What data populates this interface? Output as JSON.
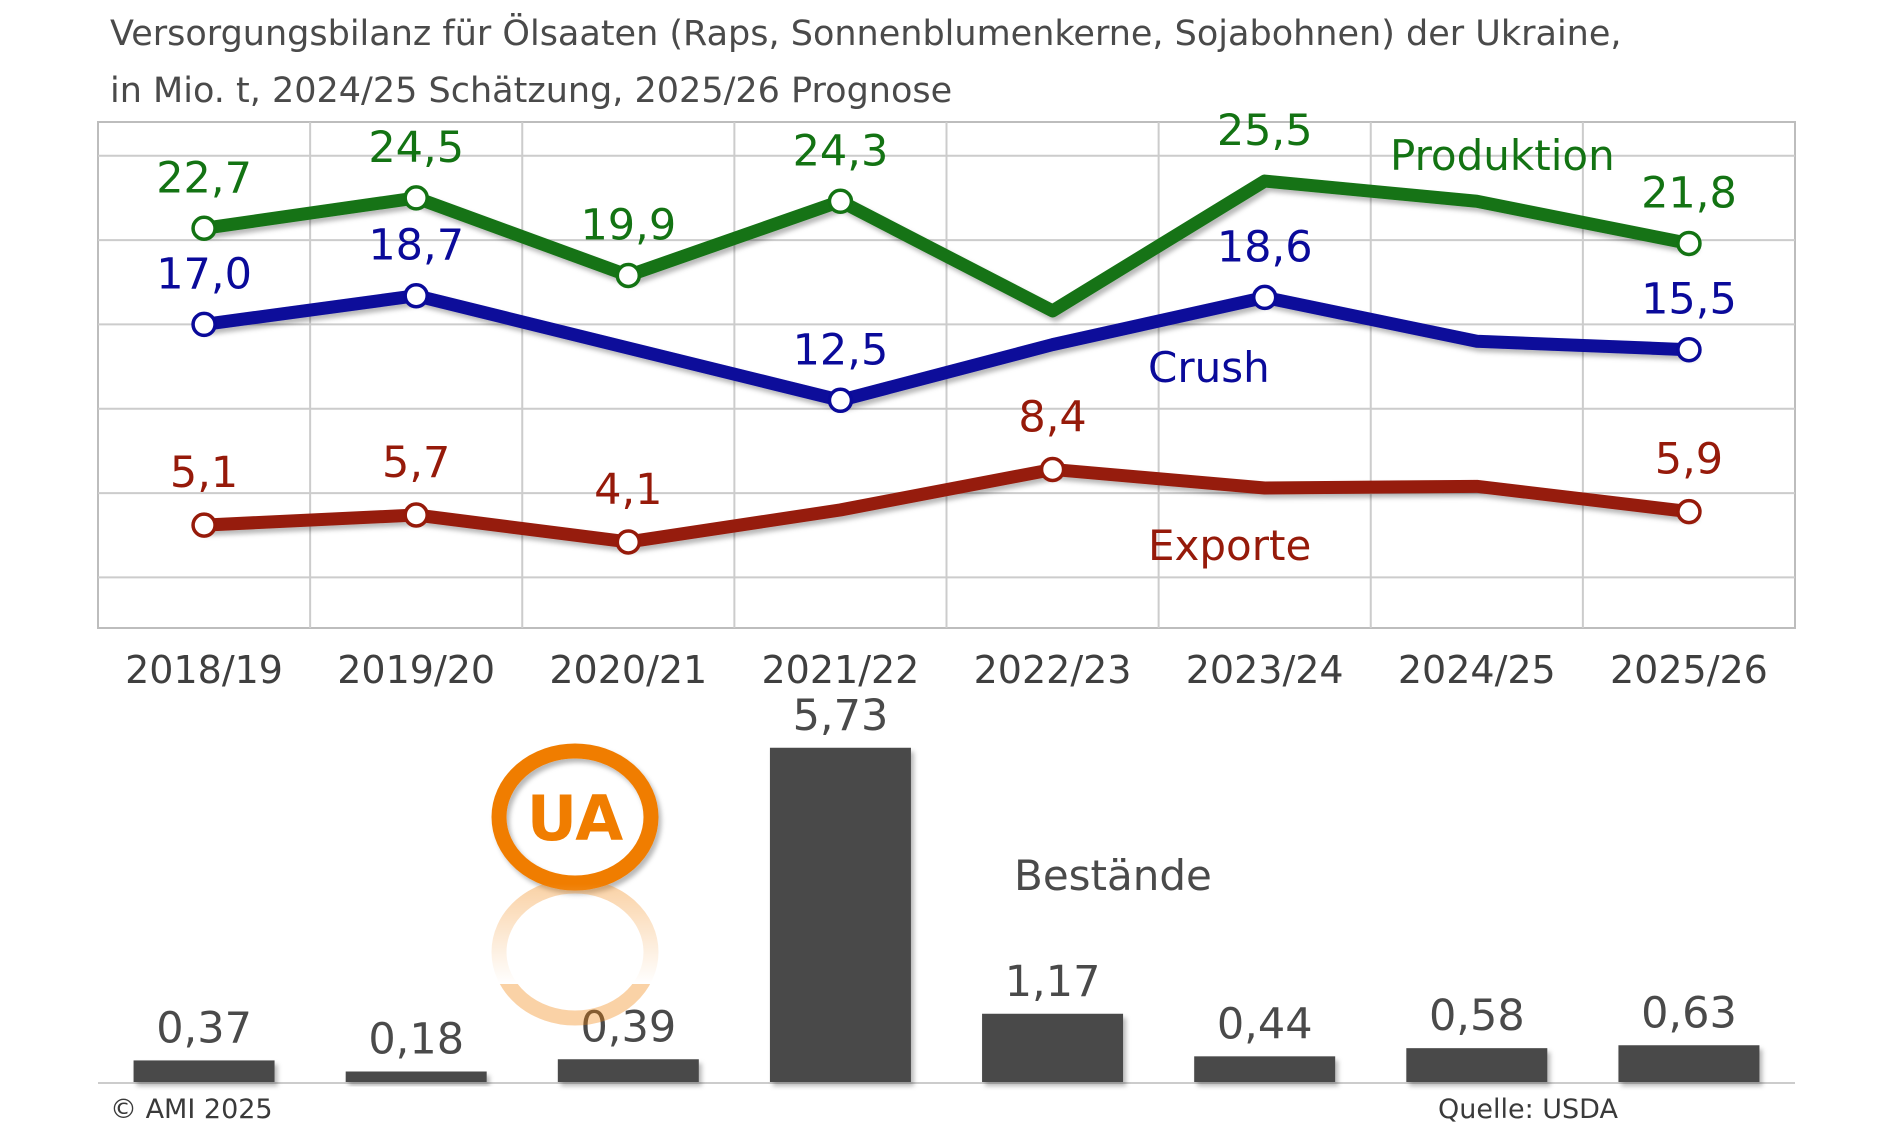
{
  "title": {
    "line1": "Versorgungsbilanz für Ölsaaten (Raps, Sonnenblumenkerne, Sojabohnen) der Ukraine,",
    "line2": "in Mio. t, 2024/25 Schätzung, 2025/26 Prognose"
  },
  "chart_data": {
    "type": "line",
    "categories": [
      "2018/19",
      "2019/20",
      "2020/21",
      "2021/22",
      "2022/23",
      "2023/24",
      "2024/25",
      "2025/26"
    ],
    "ylim": [
      -1,
      29
    ],
    "grid": true,
    "series": [
      {
        "name": "Produktion",
        "color": "#137313",
        "values": [
          22.7,
          24.5,
          19.9,
          24.3,
          17.8,
          25.5,
          24.3,
          21.8
        ],
        "labels": [
          "22,7",
          "24,5",
          "19,9",
          "24,3",
          "",
          "25,5",
          "",
          "21,8"
        ],
        "markers": [
          true,
          true,
          true,
          true,
          false,
          false,
          false,
          true
        ]
      },
      {
        "name": "Crush",
        "color": "#0a0a9a",
        "values": [
          17.0,
          18.7,
          15.6,
          12.5,
          15.8,
          18.6,
          16.0,
          15.5
        ],
        "labels": [
          "17,0",
          "18,7",
          "",
          "12,5",
          "",
          "18,6",
          "",
          "15,5"
        ],
        "markers": [
          true,
          true,
          false,
          true,
          false,
          true,
          false,
          true
        ]
      },
      {
        "name": "Exporte",
        "color": "#961a0a",
        "values": [
          5.1,
          5.7,
          4.1,
          6.0,
          8.4,
          7.3,
          7.4,
          5.9
        ],
        "labels": [
          "5,1",
          "5,7",
          "4,1",
          "",
          "8,4",
          "",
          "",
          "5,9"
        ],
        "markers": [
          true,
          true,
          true,
          false,
          true,
          false,
          false,
          true
        ]
      }
    ],
    "stocks": {
      "name": "Bestände",
      "color": "#4a4a4a",
      "values": [
        0.37,
        0.18,
        0.39,
        5.73,
        1.17,
        0.44,
        0.58,
        0.63
      ],
      "labels": [
        "0,37",
        "0,18",
        "0,39",
        "5,73",
        "1,17",
        "0,44",
        "0,58",
        "0,63"
      ]
    }
  },
  "badge": {
    "text": "UA",
    "color": "#f07d00"
  },
  "footer": {
    "copyright": "© AMI 2025",
    "source": "Quelle: USDA"
  }
}
